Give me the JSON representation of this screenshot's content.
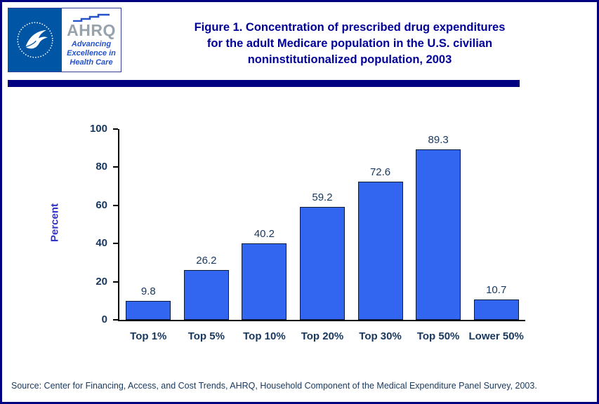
{
  "header": {
    "title_lines": [
      "Figure 1. Concentration of prescribed drug expenditures",
      "for the adult Medicare population in the U.S. civilian",
      "noninstitutionalized population, 2003"
    ],
    "logos": {
      "hhs_icon": "hhs-eagle-seal-icon",
      "ahrq_acronym": "AHRQ",
      "ahrq_tagline_lines": [
        "Advancing",
        "Excellence in",
        "Health Care"
      ]
    }
  },
  "chart_data": {
    "type": "bar",
    "categories": [
      "Top 1%",
      "Top 5%",
      "Top 10%",
      "Top 20%",
      "Top 30%",
      "Top 50%",
      "Lower 50%"
    ],
    "values": [
      9.8,
      26.2,
      40.2,
      59.2,
      72.6,
      89.3,
      10.7
    ],
    "title": "Figure 1. Concentration of prescribed drug expenditures for the adult Medicare population in the U.S. civilian noninstitutionalized population, 2003",
    "xlabel": "",
    "ylabel": "Percent",
    "ylim": [
      0,
      100
    ],
    "yticks": [
      0,
      20,
      40,
      60,
      80,
      100
    ],
    "grid": false,
    "legend": false,
    "data_labels": true,
    "bar_color": "#3366F0",
    "bar_border_color": "#0a1a3a"
  },
  "footer": {
    "source": "Source: Center for Financing, Access, and Cost Trends, AHRQ, Household Component of the Medical Expenditure Panel Survey, 2003."
  },
  "colors": {
    "page_border": "#000080",
    "title_text": "#000099",
    "header_rule": "#000080",
    "axis_text": "#17375E",
    "ylabel_text": "#3333CC",
    "source_text": "#17375E",
    "hhs_blue": "#0055A4",
    "ahrq_gray": "#98A2AC",
    "ahrq_blue": "#2451C8"
  }
}
